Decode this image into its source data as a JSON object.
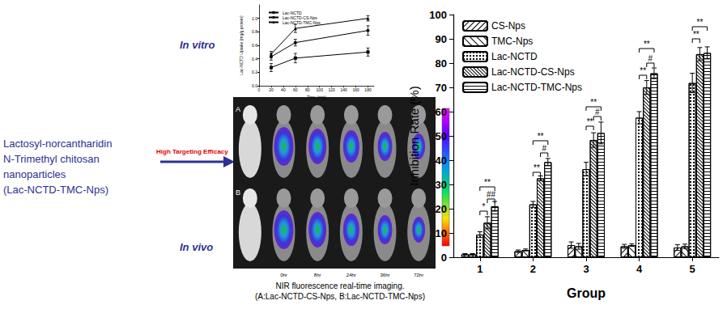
{
  "header": {
    "title_lines": [
      "Lactosyl-norcantharidin",
      "N-Trimethyl chitosan",
      "nanoparticles",
      "(Lac-NCTD-TMC-Nps)"
    ],
    "arrow_label": "High Targeting Efficacy",
    "in_vitro": "In vitro",
    "in_vivo": "In vivo"
  },
  "imaging": {
    "rows": [
      "A",
      "B"
    ],
    "time_labels": [
      "0hr",
      "8hr",
      "24hr",
      "36hr",
      "72hr"
    ],
    "caption": [
      "NIR fluorescence real-time imaging.",
      "(A:Lac-NCTD-CS-Nps, B:Lac-NCTD-TMC-Nps)"
    ]
  },
  "chart_data": [
    {
      "type": "line",
      "x_label": "Time (min)",
      "y_label": "Lac-NCTD Uptake (mg/g protein)",
      "x": [
        20,
        60,
        180
      ],
      "xlim": [
        0,
        190
      ],
      "xticks": [
        0,
        20,
        40,
        60,
        80,
        100,
        120,
        140,
        160,
        180
      ],
      "ylim": [
        0,
        1.2
      ],
      "yticks": [
        {
          "value": 0,
          "label": "0.0"
        },
        0.2,
        0.4,
        0.6,
        0.8,
        {
          "value": 1,
          "label": "1.0"
        }
      ],
      "legend": "upper left",
      "grid": false,
      "series": [
        {
          "name": "Lac-NCTD",
          "color": "#000000",
          "marker": "square",
          "values": [
            0.27,
            0.41,
            0.5
          ],
          "errors": [
            0.06,
            0.07,
            0.06
          ]
        },
        {
          "name": "Lac-NCTD-CS-Nps",
          "color": "#000000",
          "marker": "circle",
          "values": [
            0.43,
            0.64,
            0.82
          ],
          "errors": [
            0.05,
            0.05,
            0.07
          ]
        },
        {
          "name": "Lac-NCTD-TMC-Nps",
          "color": "#000000",
          "marker": "triangle",
          "values": [
            0.47,
            0.85,
            1.0
          ],
          "errors": [
            0.04,
            0.06,
            0.04
          ]
        }
      ]
    },
    {
      "type": "bar",
      "x_label": "Group",
      "y_label": "Inhibition Rate (%)",
      "categories": [
        "1",
        "2",
        "3",
        "4",
        "5"
      ],
      "ylim": [
        0,
        100
      ],
      "yticks": [
        0,
        10,
        20,
        30,
        40,
        50,
        60,
        70,
        80,
        90,
        100
      ],
      "legend": "upper left",
      "grid": false,
      "series": [
        {
          "name": "CS-Nps",
          "color": "#ffffff",
          "values": [
            1.2,
            2.5,
            5.0,
            4.5,
            4.0
          ],
          "errors": [
            0.3,
            0.5,
            1.3,
            0.8,
            1.2
          ]
        },
        {
          "name": "TMC-Nps",
          "color": "#ffffff",
          "values": [
            1.2,
            3.0,
            4.5,
            5.0,
            4.5
          ],
          "errors": [
            0.3,
            0.4,
            1.2,
            0.5,
            0.9
          ]
        },
        {
          "name": "Lac-NCTD",
          "color": "#ffffff",
          "values": [
            9.3,
            21.8,
            36.3,
            57.5,
            71.8
          ],
          "errors": [
            1.2,
            1.2,
            2.8,
            2.5,
            4.0
          ]
        },
        {
          "name": "Lac-NCTD-CS-Nps",
          "color": "#ffffff",
          "values": [
            14.2,
            32.5,
            48.3,
            70.0,
            83.7
          ],
          "errors": [
            2.5,
            1.0,
            3.0,
            2.8,
            2.7
          ]
        },
        {
          "name": "Lac-NCTD-TMC-Nps",
          "color": "#ffffff",
          "values": [
            21.0,
            39.2,
            51.2,
            75.8,
            84.2
          ],
          "errors": [
            2.0,
            1.5,
            4.5,
            2.2,
            2.5
          ]
        }
      ],
      "annotations": [
        {
          "category": "1",
          "from": "Lac-NCTD",
          "to": "Lac-NCTD-CS-Nps",
          "y": 19,
          "label": "*"
        },
        {
          "category": "1",
          "from": "Lac-NCTD-CS-Nps",
          "to": "Lac-NCTD-TMC-Nps",
          "y": 24,
          "label": "##"
        },
        {
          "category": "1",
          "from": "Lac-NCTD",
          "to": "Lac-NCTD-TMC-Nps",
          "y": 29,
          "label": "**"
        },
        {
          "category": "2",
          "from": "Lac-NCTD",
          "to": "Lac-NCTD-CS-Nps",
          "y": 35,
          "label": "**"
        },
        {
          "category": "2",
          "from": "Lac-NCTD-CS-Nps",
          "to": "Lac-NCTD-TMC-Nps",
          "y": 43,
          "label": "#"
        },
        {
          "category": "2",
          "from": "Lac-NCTD",
          "to": "Lac-NCTD-TMC-Nps",
          "y": 48,
          "label": "**"
        },
        {
          "category": "3",
          "from": "Lac-NCTD",
          "to": "Lac-NCTD-CS-Nps",
          "y": 54,
          "label": "**"
        },
        {
          "category": "3",
          "from": "Lac-NCTD-CS-Nps",
          "to": "Lac-NCTD-TMC-Nps",
          "y": 58,
          "label": "#"
        },
        {
          "category": "3",
          "from": "Lac-NCTD",
          "to": "Lac-NCTD-TMC-Nps",
          "y": 62,
          "label": "**"
        },
        {
          "category": "4",
          "from": "Lac-NCTD",
          "to": "Lac-NCTD-CS-Nps",
          "y": 75,
          "label": "**"
        },
        {
          "category": "4",
          "from": "Lac-NCTD-CS-Nps",
          "to": "Lac-NCTD-TMC-Nps",
          "y": 80,
          "label": "#"
        },
        {
          "category": "4",
          "from": "Lac-NCTD",
          "to": "Lac-NCTD-TMC-Nps",
          "y": 86,
          "label": "**"
        },
        {
          "category": "5",
          "from": "Lac-NCTD",
          "to": "Lac-NCTD-CS-Nps",
          "y": 90,
          "label": "**"
        },
        {
          "category": "5",
          "from": "Lac-NCTD",
          "to": "Lac-NCTD-TMC-Nps",
          "y": 95,
          "label": "**"
        }
      ]
    }
  ]
}
